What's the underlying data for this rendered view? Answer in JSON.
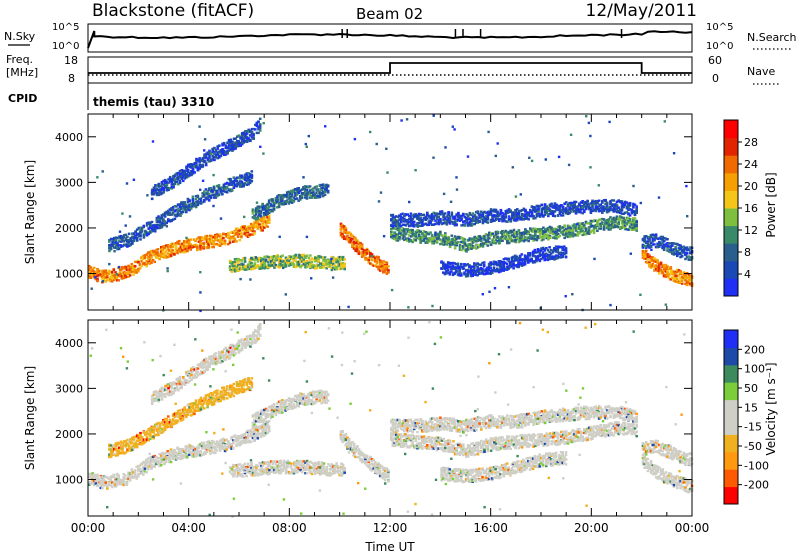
{
  "header": {
    "station": "Blackstone (fitACF)",
    "beam": "Beam 02",
    "date": "12/May/2011"
  },
  "status_panels": {
    "nsky_label": "N.Sky",
    "nsky_ticks": [
      "10^5",
      "10^0"
    ],
    "nsearch_label": "N.Search",
    "nsearch_ticks": [
      "10^5",
      "10^0"
    ],
    "freq_label": "Freq.",
    "freq_unit": "[MHz]",
    "freq_ticks": [
      "18",
      "8"
    ],
    "nave_label": "Nave",
    "nave_ticks": [
      "60",
      "0"
    ],
    "cpid_label": "CPID",
    "cpid_value": "themis (tau) 3310"
  },
  "colors": {
    "power_scale": [
      "#1f2ff5",
      "#1a48b4",
      "#2a5e8c",
      "#3a8a6a",
      "#7fbf3f",
      "#f5c518",
      "#f5a000",
      "#f06a00",
      "#e22400",
      "#ff0000"
    ],
    "velocity_scale": [
      "#ff0000",
      "#ff5a00",
      "#ff9a10",
      "#f0b020",
      "#cfcfc7",
      "#cfcfc7",
      "#7ccd3c",
      "#3d8a5e",
      "#1d4aa8",
      "#1f2ff5"
    ]
  },
  "chart_data": [
    {
      "type": "heatmap",
      "name": "power",
      "ylabel": "Slant Range [km]",
      "yticks": [
        "1000",
        "2000",
        "3000",
        "4000"
      ],
      "ylim": [
        200,
        4500
      ],
      "xlim": [
        0,
        24
      ],
      "colorbar_label": "Power [dB]",
      "colorbar_ticks": [
        "4",
        "8",
        "12",
        "16",
        "20",
        "24",
        "28"
      ],
      "clim": [
        0,
        32
      ],
      "bands": [
        {
          "t": [
            0,
            0.6,
            1.5,
            2.5,
            3.5,
            4.5,
            5.5,
            6.5,
            7.2
          ],
          "r": [
            1050,
            950,
            1050,
            1400,
            1600,
            1700,
            1800,
            2000,
            2200
          ],
          "value": 22
        },
        {
          "t": [
            0.8,
            1.5,
            2.5,
            3.5,
            4.5,
            5.5,
            6.5
          ],
          "r": [
            1650,
            1750,
            2050,
            2400,
            2700,
            2950,
            3150
          ],
          "value": 6
        },
        {
          "t": [
            2.5,
            3.5,
            4.5,
            5.5,
            6.5,
            6.8
          ],
          "r": [
            2800,
            3100,
            3500,
            3800,
            4100,
            4300
          ],
          "value": 5
        },
        {
          "t": [
            5.6,
            6.5,
            7.5,
            8.5,
            9.5,
            10.2
          ],
          "r": [
            1200,
            1250,
            1300,
            1300,
            1250,
            1250
          ],
          "value": 14
        },
        {
          "t": [
            6.5,
            7.5,
            8.5,
            9.5
          ],
          "r": [
            2300,
            2600,
            2800,
            2850
          ],
          "value": 8
        },
        {
          "t": [
            10.0,
            10.5,
            11.0,
            11.5,
            11.9
          ],
          "r": [
            2000,
            1700,
            1450,
            1250,
            1100
          ],
          "value": 24
        },
        {
          "t": [
            12.0,
            13.0,
            14.0,
            15.0,
            16.0,
            17.0,
            18.0,
            19.0,
            20.0,
            21.0,
            21.8
          ],
          "r": [
            1900,
            1850,
            1800,
            1650,
            1800,
            1850,
            1900,
            1950,
            2050,
            2150,
            2100
          ],
          "value": 11
        },
        {
          "t": [
            12.0,
            13.0,
            14.0,
            15.0,
            16.0,
            17.0,
            18.0,
            19.0,
            20.0,
            21.0,
            21.8
          ],
          "r": [
            2200,
            2200,
            2250,
            2200,
            2300,
            2300,
            2400,
            2450,
            2500,
            2500,
            2400
          ],
          "value": 5
        },
        {
          "t": [
            14.0,
            15.0,
            16.0,
            17.0,
            18.0,
            19.0
          ],
          "r": [
            1150,
            1100,
            1150,
            1300,
            1450,
            1500
          ],
          "value": 3
        },
        {
          "t": [
            22.0,
            22.5,
            23.0,
            23.5,
            24.0
          ],
          "r": [
            1450,
            1200,
            1050,
            950,
            850
          ],
          "value": 22
        },
        {
          "t": [
            22.0,
            22.5,
            23.0,
            23.5,
            24.0
          ],
          "r": [
            1700,
            1750,
            1650,
            1500,
            1450
          ],
          "value": 6
        }
      ]
    },
    {
      "type": "heatmap",
      "name": "velocity",
      "ylabel": "Slant Range [km]",
      "yticks": [
        "1000",
        "2000",
        "3000",
        "4000"
      ],
      "ylim": [
        200,
        4500
      ],
      "xlim": [
        0,
        24
      ],
      "xlabel": "Time UT",
      "xticks": [
        "00:00",
        "04:00",
        "08:00",
        "12:00",
        "16:00",
        "20:00",
        "00:00"
      ],
      "colorbar_label": "Velocity [m s⁻¹]",
      "colorbar_ticks": [
        "200",
        "100",
        "50",
        "15",
        "-15",
        "-50",
        "-100",
        "-200"
      ],
      "clim": [
        -250,
        250
      ],
      "bands": [
        {
          "t": [
            0,
            0.6,
            1.5,
            2.5,
            3.5,
            4.5,
            5.5,
            6.5,
            7.2
          ],
          "r": [
            1050,
            950,
            1050,
            1400,
            1600,
            1700,
            1800,
            2000,
            2200
          ],
          "value": 0
        },
        {
          "t": [
            0.8,
            1.5,
            2.5,
            3.5,
            4.5,
            5.5,
            6.5
          ],
          "r": [
            1650,
            1750,
            2050,
            2400,
            2700,
            2950,
            3150
          ],
          "value": -70
        },
        {
          "t": [
            2.5,
            3.5,
            4.5,
            5.5,
            6.5,
            6.8
          ],
          "r": [
            2800,
            3100,
            3500,
            3800,
            4100,
            4300
          ],
          "value": -40
        },
        {
          "t": [
            5.6,
            6.5,
            7.5,
            8.5,
            9.5,
            10.2
          ],
          "r": [
            1200,
            1250,
            1300,
            1300,
            1250,
            1250
          ],
          "value": 0
        },
        {
          "t": [
            6.5,
            7.5,
            8.5,
            9.5
          ],
          "r": [
            2300,
            2600,
            2800,
            2850
          ],
          "value": 0
        },
        {
          "t": [
            10.0,
            10.5,
            11.0,
            11.5,
            11.9
          ],
          "r": [
            2000,
            1700,
            1450,
            1250,
            1100
          ],
          "value": 0
        },
        {
          "t": [
            12.0,
            13.0,
            14.0,
            15.0,
            16.0,
            17.0,
            18.0,
            19.0,
            20.0,
            21.0,
            21.8
          ],
          "r": [
            1900,
            1850,
            1800,
            1650,
            1800,
            1850,
            1900,
            1950,
            2050,
            2150,
            2100
          ],
          "value": 0
        },
        {
          "t": [
            12.0,
            13.0,
            14.0,
            15.0,
            16.0,
            17.0,
            18.0,
            19.0,
            20.0,
            21.0,
            21.8
          ],
          "r": [
            2200,
            2200,
            2250,
            2200,
            2300,
            2300,
            2400,
            2450,
            2500,
            2500,
            2400
          ],
          "value": 0
        },
        {
          "t": [
            14.0,
            15.0,
            16.0,
            17.0,
            18.0,
            19.0
          ],
          "r": [
            1150,
            1100,
            1150,
            1300,
            1450,
            1500
          ],
          "value": 0
        },
        {
          "t": [
            22.0,
            22.5,
            23.0,
            23.5,
            24.0
          ],
          "r": [
            1450,
            1200,
            1050,
            950,
            850
          ],
          "value": 0
        },
        {
          "t": [
            22.0,
            22.5,
            23.0,
            23.5,
            24.0
          ],
          "r": [
            1700,
            1750,
            1650,
            1500,
            1450
          ],
          "value": 0
        }
      ]
    }
  ]
}
